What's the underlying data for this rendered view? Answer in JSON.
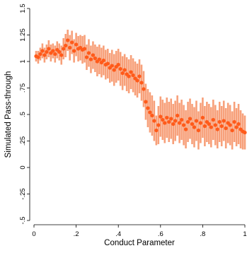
{
  "chart_data": {
    "type": "scatter",
    "title": "",
    "xlabel": "Conduct Parameter",
    "ylabel": "Simulated Pass-through",
    "xlim": [
      0,
      1
    ],
    "ylim": [
      -0.5,
      1.5
    ],
    "xticks": [
      {
        "value": 0,
        "label": "0"
      },
      {
        "value": 0.2,
        "label": ".2"
      },
      {
        "value": 0.4,
        "label": ".4"
      },
      {
        "value": 0.6,
        "label": ".6"
      },
      {
        "value": 0.8,
        "label": ".8"
      },
      {
        "value": 1,
        "label": "1"
      }
    ],
    "yticks": [
      {
        "value": -0.5,
        "label": "-.5"
      },
      {
        "value": -0.25,
        "label": "-.25"
      },
      {
        "value": 0,
        "label": "0"
      },
      {
        "value": 0.25,
        "label": ".25"
      },
      {
        "value": 0.5,
        "label": ".5"
      },
      {
        "value": 0.75,
        "label": ".75"
      },
      {
        "value": 1,
        "label": "1"
      },
      {
        "value": 1.25,
        "label": "1.25"
      },
      {
        "value": 1.5,
        "label": "1.5"
      }
    ],
    "grid": false,
    "legend": "none",
    "colors": {
      "point": "#ff5a1a",
      "interval": "#f7a07a"
    },
    "x": [
      0.01,
      0.02,
      0.03,
      0.04,
      0.05,
      0.06,
      0.07,
      0.08,
      0.09,
      0.1,
      0.11,
      0.12,
      0.13,
      0.14,
      0.15,
      0.16,
      0.17,
      0.18,
      0.19,
      0.2,
      0.21,
      0.22,
      0.23,
      0.24,
      0.25,
      0.26,
      0.27,
      0.28,
      0.29,
      0.3,
      0.31,
      0.32,
      0.33,
      0.34,
      0.35,
      0.36,
      0.37,
      0.38,
      0.39,
      0.4,
      0.41,
      0.42,
      0.43,
      0.44,
      0.45,
      0.46,
      0.47,
      0.48,
      0.49,
      0.5,
      0.51,
      0.52,
      0.53,
      0.54,
      0.55,
      0.56,
      0.57,
      0.58,
      0.59,
      0.6,
      0.61,
      0.62,
      0.63,
      0.64,
      0.65,
      0.66,
      0.67,
      0.68,
      0.69,
      0.7,
      0.71,
      0.72,
      0.73,
      0.74,
      0.75,
      0.76,
      0.77,
      0.78,
      0.79,
      0.8,
      0.81,
      0.82,
      0.83,
      0.84,
      0.85,
      0.86,
      0.87,
      0.88,
      0.89,
      0.9,
      0.91,
      0.92,
      0.93,
      0.94,
      0.95,
      0.96,
      0.97,
      0.98,
      0.99,
      1.0
    ],
    "y": [
      1.05,
      1.04,
      1.07,
      1.1,
      1.06,
      1.09,
      1.12,
      1.08,
      1.1,
      1.07,
      1.11,
      1.09,
      1.06,
      1.12,
      1.15,
      1.2,
      1.13,
      1.18,
      1.1,
      1.16,
      1.12,
      1.13,
      1.11,
      1.12,
      1.04,
      1.08,
      1.02,
      1.06,
      1.03,
      1.0,
      1.02,
      0.99,
      1.01,
      0.97,
      0.98,
      0.94,
      0.96,
      0.92,
      0.95,
      0.97,
      0.93,
      0.89,
      0.92,
      0.88,
      0.86,
      0.9,
      0.87,
      0.84,
      0.82,
      0.86,
      0.8,
      0.74,
      0.62,
      0.56,
      0.52,
      0.49,
      0.44,
      0.35,
      0.4,
      0.48,
      0.45,
      0.42,
      0.47,
      0.43,
      0.46,
      0.41,
      0.44,
      0.49,
      0.42,
      0.45,
      0.4,
      0.36,
      0.43,
      0.46,
      0.41,
      0.38,
      0.44,
      0.35,
      0.42,
      0.47,
      0.39,
      0.43,
      0.41,
      0.38,
      0.45,
      0.4,
      0.36,
      0.43,
      0.39,
      0.44,
      0.37,
      0.42,
      0.4,
      0.35,
      0.43,
      0.38,
      0.41,
      0.36,
      0.34,
      0.33
    ],
    "ci_low": [
      1.0,
      0.98,
      1.01,
      1.03,
      0.99,
      1.02,
      1.04,
      1.0,
      1.03,
      0.99,
      1.03,
      1.01,
      0.97,
      1.02,
      1.04,
      1.1,
      1.01,
      1.07,
      0.99,
      1.05,
      1.0,
      1.01,
      0.98,
      0.99,
      0.92,
      0.95,
      0.89,
      0.93,
      0.9,
      0.86,
      0.88,
      0.85,
      0.87,
      0.83,
      0.84,
      0.8,
      0.81,
      0.77,
      0.8,
      0.82,
      0.77,
      0.73,
      0.77,
      0.72,
      0.7,
      0.74,
      0.71,
      0.68,
      0.66,
      0.7,
      0.63,
      0.57,
      0.45,
      0.38,
      0.33,
      0.3,
      0.25,
      0.21,
      0.22,
      0.29,
      0.26,
      0.23,
      0.28,
      0.24,
      0.27,
      0.22,
      0.25,
      0.3,
      0.23,
      0.26,
      0.21,
      0.18,
      0.24,
      0.27,
      0.22,
      0.19,
      0.25,
      0.17,
      0.23,
      0.28,
      0.2,
      0.24,
      0.22,
      0.19,
      0.26,
      0.21,
      0.18,
      0.24,
      0.2,
      0.25,
      0.18,
      0.23,
      0.21,
      0.17,
      0.24,
      0.2,
      0.22,
      0.18,
      0.17,
      0.17
    ],
    "ci_high": [
      1.1,
      1.1,
      1.13,
      1.17,
      1.13,
      1.16,
      1.2,
      1.16,
      1.17,
      1.15,
      1.19,
      1.17,
      1.15,
      1.22,
      1.26,
      1.3,
      1.25,
      1.29,
      1.21,
      1.27,
      1.24,
      1.25,
      1.24,
      1.25,
      1.16,
      1.21,
      1.15,
      1.19,
      1.16,
      1.14,
      1.16,
      1.13,
      1.15,
      1.11,
      1.12,
      1.08,
      1.11,
      1.07,
      1.1,
      1.12,
      1.09,
      1.05,
      1.07,
      1.04,
      1.02,
      1.06,
      1.03,
      1.0,
      0.98,
      1.02,
      0.97,
      0.91,
      0.79,
      0.74,
      0.71,
      0.68,
      0.63,
      0.49,
      0.58,
      0.67,
      0.64,
      0.61,
      0.66,
      0.62,
      0.65,
      0.6,
      0.63,
      0.68,
      0.61,
      0.64,
      0.59,
      0.54,
      0.62,
      0.65,
      0.6,
      0.57,
      0.63,
      0.53,
      0.61,
      0.66,
      0.58,
      0.62,
      0.6,
      0.57,
      0.64,
      0.59,
      0.54,
      0.62,
      0.58,
      0.63,
      0.56,
      0.61,
      0.59,
      0.53,
      0.62,
      0.56,
      0.6,
      0.54,
      0.51,
      0.49
    ]
  }
}
